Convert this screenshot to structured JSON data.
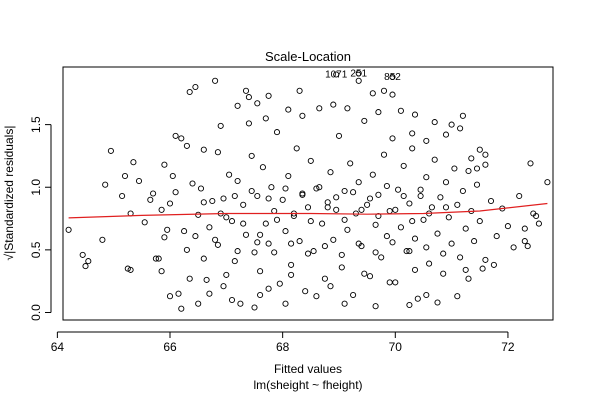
{
  "chart_data": {
    "type": "scatter",
    "title": "Scale-Location",
    "xlabel": "Fitted values",
    "ylabel": "√|Standardized residuals|",
    "subtitle": "lm(sheight ~ fheight)",
    "xlim": [
      64.1,
      72.8
    ],
    "ylim": [
      -0.06,
      1.96
    ],
    "x_ticks": [
      64,
      66,
      68,
      70,
      72
    ],
    "x_tick_labels": [
      "64",
      "66",
      "68",
      "70",
      "72"
    ],
    "y_ticks": [
      0.0,
      0.5,
      1.0,
      1.5
    ],
    "y_tick_labels": [
      "0.0",
      "0.5",
      "1.0",
      "1.5"
    ],
    "grid": false,
    "point_style": "open-circle",
    "point_color": "#000000",
    "smoother_color": "#e02020",
    "smoother": {
      "x": [
        64.2,
        65.5,
        67.0,
        68.5,
        69.5,
        70.5,
        71.5,
        72.7
      ],
      "y": [
        0.755,
        0.775,
        0.79,
        0.79,
        0.785,
        0.79,
        0.81,
        0.87
      ]
    },
    "labeled_points": [
      {
        "label": "1071",
        "x": 68.95,
        "y": 1.9
      },
      {
        "label": "251",
        "x": 69.35,
        "y": 1.91
      },
      {
        "label": "852",
        "x": 69.95,
        "y": 1.88
      }
    ],
    "points": [
      [
        64.2,
        0.66
      ],
      [
        64.45,
        0.46
      ],
      [
        64.55,
        0.41
      ],
      [
        64.5,
        0.37
      ],
      [
        64.8,
        0.58
      ],
      [
        64.85,
        1.02
      ],
      [
        64.95,
        1.29
      ],
      [
        65.15,
        0.93
      ],
      [
        65.2,
        1.09
      ],
      [
        65.3,
        0.79
      ],
      [
        65.35,
        1.2
      ],
      [
        65.45,
        1.05
      ],
      [
        65.25,
        0.35
      ],
      [
        65.3,
        0.34
      ],
      [
        65.55,
        0.72
      ],
      [
        65.65,
        0.9
      ],
      [
        65.7,
        0.95
      ],
      [
        65.8,
        0.43
      ],
      [
        65.85,
        0.82
      ],
      [
        65.9,
        0.6
      ],
      [
        65.95,
        0.66
      ],
      [
        66.0,
        0.87
      ],
      [
        66.05,
        1.09
      ],
      [
        66.1,
        0.96
      ],
      [
        66.15,
        0.15
      ],
      [
        66.2,
        1.39
      ],
      [
        66.25,
        0.65
      ],
      [
        66.3,
        1.33
      ],
      [
        66.35,
        0.27
      ],
      [
        66.4,
        1.03
      ],
      [
        66.45,
        0.61
      ],
      [
        66.5,
        0.78
      ],
      [
        66.55,
        0.99
      ],
      [
        66.6,
        0.88
      ],
      [
        66.65,
        0.26
      ],
      [
        66.7,
        0.68
      ],
      [
        66.75,
        0.89
      ],
      [
        66.8,
        0.58
      ],
      [
        66.85,
        1.28
      ],
      [
        66.9,
        0.79
      ],
      [
        66.95,
        0.91
      ],
      [
        67.0,
        0.3
      ],
      [
        67.05,
        1.1
      ],
      [
        67.1,
        0.73
      ],
      [
        67.15,
        0.41
      ],
      [
        67.2,
        1.05
      ],
      [
        67.25,
        0.07
      ],
      [
        67.3,
        0.86
      ],
      [
        67.35,
        0.62
      ],
      [
        67.4,
        1.72
      ],
      [
        67.45,
        1.25
      ],
      [
        67.5,
        0.48
      ],
      [
        67.55,
        0.93
      ],
      [
        67.6,
        0.33
      ],
      [
        67.65,
        1.16
      ],
      [
        67.7,
        0.71
      ],
      [
        67.75,
        0.55
      ],
      [
        67.8,
        1.0
      ],
      [
        67.85,
        0.81
      ],
      [
        67.9,
        1.44
      ],
      [
        67.95,
        0.23
      ],
      [
        68.0,
        0.9
      ],
      [
        68.05,
        0.65
      ],
      [
        68.1,
        1.09
      ],
      [
        68.15,
        0.38
      ],
      [
        68.2,
        0.77
      ],
      [
        68.25,
        1.31
      ],
      [
        68.3,
        0.57
      ],
      [
        68.35,
        0.95
      ],
      [
        68.4,
        0.17
      ],
      [
        68.45,
        0.84
      ],
      [
        68.5,
        1.21
      ],
      [
        68.55,
        0.49
      ],
      [
        68.6,
        0.99
      ],
      [
        68.65,
        1.63
      ],
      [
        68.7,
        0.71
      ],
      [
        68.75,
        0.27
      ],
      [
        68.8,
        0.88
      ],
      [
        68.85,
        1.12
      ],
      [
        68.9,
        0.58
      ],
      [
        68.95,
        0.82
      ],
      [
        69.0,
        1.41
      ],
      [
        69.05,
        0.36
      ],
      [
        69.1,
        0.97
      ],
      [
        69.15,
        0.66
      ],
      [
        69.2,
        1.19
      ],
      [
        69.25,
        0.14
      ],
      [
        69.3,
        0.79
      ],
      [
        69.35,
        1.04
      ],
      [
        69.4,
        0.53
      ],
      [
        69.45,
        1.53
      ],
      [
        69.5,
        0.86
      ],
      [
        69.55,
        0.29
      ],
      [
        69.6,
        1.1
      ],
      [
        69.65,
        0.7
      ],
      [
        69.7,
        0.94
      ],
      [
        69.75,
        0.44
      ],
      [
        69.8,
        1.26
      ],
      [
        69.85,
        0.61
      ],
      [
        69.9,
        0.81
      ],
      [
        69.95,
        1.39
      ],
      [
        70.0,
        0.24
      ],
      [
        70.05,
        0.98
      ],
      [
        70.1,
        0.68
      ],
      [
        70.15,
        1.17
      ],
      [
        70.2,
        0.49
      ],
      [
        70.25,
        0.87
      ],
      [
        70.3,
        1.31
      ],
      [
        70.35,
        0.59
      ],
      [
        70.4,
        0.11
      ],
      [
        70.45,
        0.93
      ],
      [
        70.5,
        0.74
      ],
      [
        70.55,
        1.08
      ],
      [
        70.6,
        0.39
      ],
      [
        70.65,
        0.84
      ],
      [
        70.7,
        1.22
      ],
      [
        70.75,
        0.63
      ],
      [
        70.8,
        0.92
      ],
      [
        70.85,
        0.31
      ],
      [
        70.9,
        1.04
      ],
      [
        70.95,
        0.76
      ],
      [
        71.0,
        0.55
      ],
      [
        71.05,
        1.15
      ],
      [
        71.1,
        0.86
      ],
      [
        71.15,
        0.44
      ],
      [
        71.2,
        0.97
      ],
      [
        71.25,
        0.67
      ],
      [
        71.3,
        1.13
      ],
      [
        71.35,
        0.81
      ],
      [
        71.4,
        0.57
      ],
      [
        71.45,
        1.02
      ],
      [
        71.5,
        0.73
      ],
      [
        71.6,
        1.18
      ],
      [
        71.7,
        0.89
      ],
      [
        71.8,
        0.61
      ],
      [
        71.9,
        0.83
      ],
      [
        72.0,
        0.69
      ],
      [
        72.2,
        0.93
      ],
      [
        72.3,
        0.57
      ],
      [
        72.35,
        0.53
      ],
      [
        72.4,
        1.19
      ],
      [
        72.5,
        0.77
      ],
      [
        72.55,
        0.71
      ],
      [
        72.7,
        1.04
      ],
      [
        71.0,
        1.5
      ],
      [
        71.2,
        1.57
      ],
      [
        71.15,
        1.47
      ],
      [
        71.5,
        1.3
      ],
      [
        71.6,
        1.26
      ],
      [
        70.9,
        1.42
      ],
      [
        70.7,
        1.52
      ],
      [
        70.35,
        1.58
      ],
      [
        70.1,
        1.61
      ],
      [
        69.8,
        1.77
      ],
      [
        69.95,
        1.74
      ],
      [
        69.6,
        1.75
      ],
      [
        69.35,
        1.85
      ],
      [
        68.3,
        1.77
      ],
      [
        67.75,
        1.73
      ],
      [
        67.55,
        1.67
      ],
      [
        67.35,
        1.77
      ],
      [
        67.2,
        1.65
      ],
      [
        66.8,
        1.85
      ],
      [
        66.45,
        1.8
      ],
      [
        66.35,
        1.76
      ],
      [
        66.1,
        1.41
      ],
      [
        65.9,
        1.18
      ],
      [
        66.6,
        1.3
      ],
      [
        66.9,
        1.49
      ],
      [
        67.4,
        1.51
      ],
      [
        67.7,
        1.55
      ],
      [
        68.1,
        1.62
      ],
      [
        68.35,
        1.57
      ],
      [
        68.9,
        1.66
      ],
      [
        69.15,
        1.63
      ],
      [
        69.7,
        1.6
      ],
      [
        70.3,
        1.43
      ],
      [
        70.55,
        1.37
      ],
      [
        71.35,
        1.23
      ],
      [
        71.45,
        1.15
      ],
      [
        71.55,
        0.35
      ],
      [
        71.3,
        0.27
      ],
      [
        70.35,
        0.34
      ],
      [
        70.55,
        0.14
      ],
      [
        69.9,
        0.24
      ],
      [
        69.45,
        0.31
      ],
      [
        68.85,
        0.21
      ],
      [
        68.15,
        0.3
      ],
      [
        67.5,
        0.04
      ],
      [
        67.75,
        0.19
      ],
      [
        66.95,
        0.21
      ],
      [
        66.7,
        0.15
      ],
      [
        66.5,
        0.07
      ],
      [
        66.2,
        0.03
      ],
      [
        66.0,
        0.13
      ],
      [
        65.75,
        0.43
      ],
      [
        65.85,
        0.33
      ],
      [
        66.3,
        0.5
      ],
      [
        66.6,
        0.43
      ],
      [
        67.1,
        0.1
      ],
      [
        67.6,
        0.14
      ],
      [
        68.05,
        0.07
      ],
      [
        68.6,
        0.13
      ],
      [
        69.1,
        0.07
      ],
      [
        69.65,
        0.05
      ],
      [
        70.25,
        0.06
      ],
      [
        70.75,
        0.08
      ],
      [
        71.1,
        0.13
      ],
      [
        71.25,
        0.34
      ],
      [
        71.6,
        0.42
      ],
      [
        71.75,
        0.38
      ],
      [
        72.1,
        0.52
      ],
      [
        72.3,
        0.67
      ],
      [
        72.45,
        0.79
      ],
      [
        67.0,
        0.76
      ],
      [
        67.3,
        0.71
      ],
      [
        67.6,
        0.62
      ],
      [
        67.9,
        0.74
      ],
      [
        68.2,
        0.79
      ],
      [
        68.5,
        0.73
      ],
      [
        68.8,
        0.84
      ],
      [
        69.1,
        0.74
      ],
      [
        69.4,
        0.82
      ],
      [
        69.7,
        0.77
      ],
      [
        70.0,
        0.82
      ],
      [
        70.3,
        0.73
      ],
      [
        70.6,
        0.79
      ],
      [
        70.9,
        0.84
      ],
      [
        67.15,
        0.93
      ],
      [
        67.45,
        0.97
      ],
      [
        67.75,
        0.91
      ],
      [
        68.05,
        0.99
      ],
      [
        68.35,
        0.94
      ],
      [
        68.65,
        1.0
      ],
      [
        68.95,
        0.92
      ],
      [
        69.25,
        0.96
      ],
      [
        69.55,
        0.91
      ],
      [
        69.85,
        1.01
      ],
      [
        70.15,
        0.93
      ],
      [
        70.45,
        0.98
      ],
      [
        66.85,
        0.54
      ],
      [
        67.2,
        0.49
      ],
      [
        67.55,
        0.56
      ],
      [
        67.85,
        0.48
      ],
      [
        68.15,
        0.55
      ],
      [
        68.45,
        0.47
      ],
      [
        68.75,
        0.53
      ],
      [
        69.05,
        0.46
      ],
      [
        69.35,
        0.55
      ],
      [
        69.65,
        0.48
      ],
      [
        69.95,
        0.56
      ],
      [
        70.25,
        0.49
      ],
      [
        70.55,
        0.52
      ],
      [
        70.85,
        0.47
      ]
    ]
  }
}
